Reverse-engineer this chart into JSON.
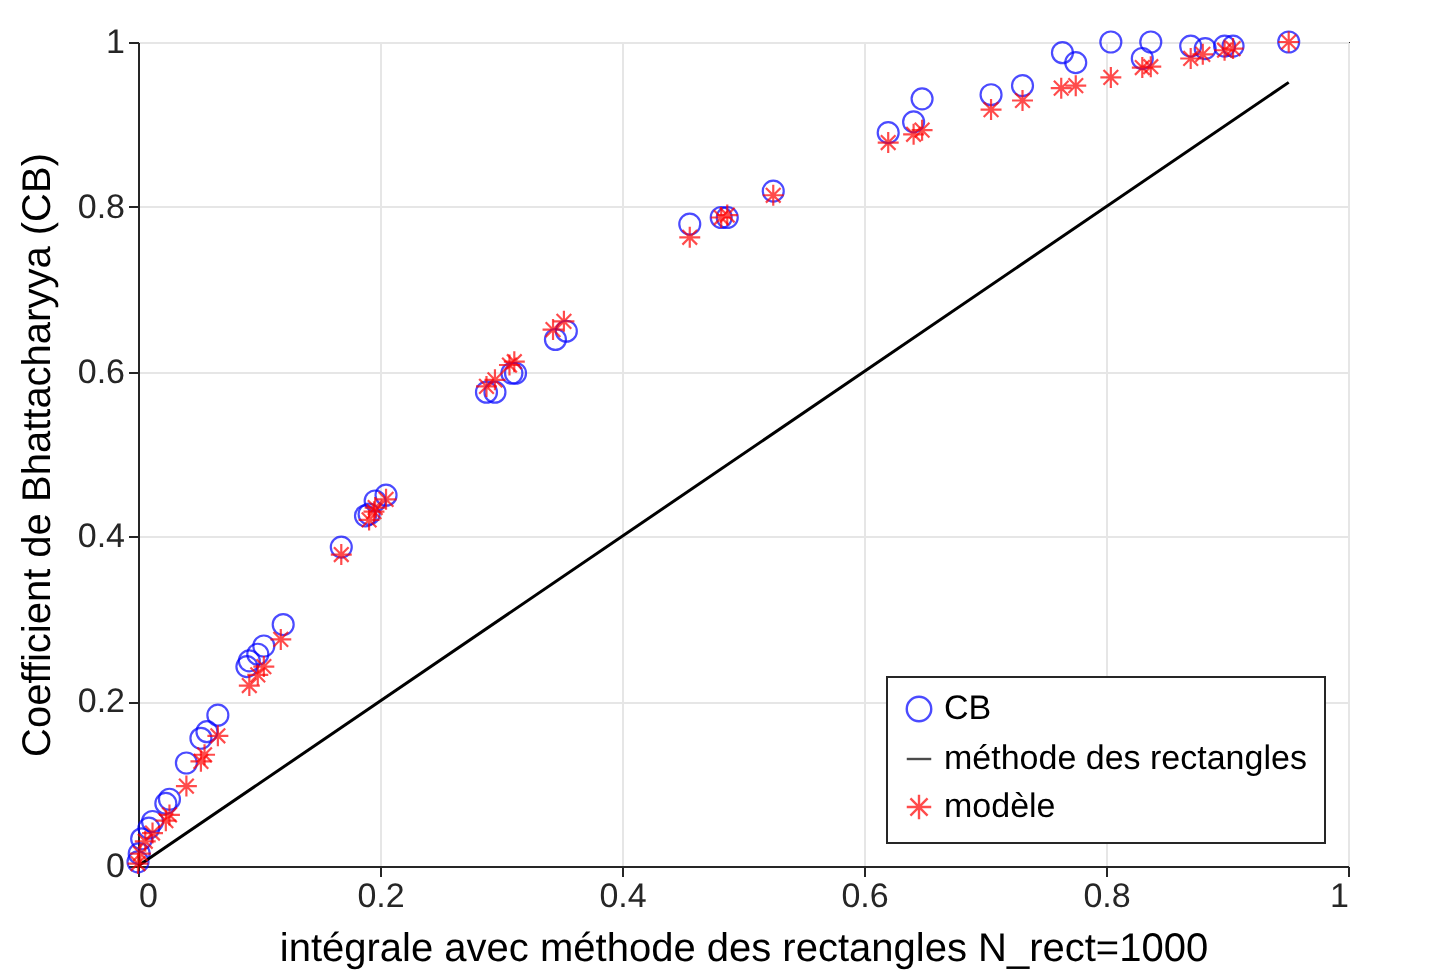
{
  "chart_data": {
    "type": "scatter",
    "xlabel": "intégrale avec méthode des rectangles N_rect=1000",
    "ylabel": "Coefficient de Bhattacharyya (CB)",
    "xlim": [
      0,
      1
    ],
    "ylim": [
      0,
      1
    ],
    "xticks": [
      0,
      0.2,
      0.4,
      0.6,
      0.8,
      1
    ],
    "yticks": [
      {
        "value": 0,
        "label": "0"
      },
      0.2,
      0.4,
      0.6,
      0.8,
      {
        "value": 1,
        "label": "1"
      }
    ],
    "grid": true,
    "legend": "bottom right",
    "series": [
      {
        "name": "CB",
        "color": "#0000ff",
        "marker": "circle",
        "x": [
          0,
          0.001,
          0.003,
          0.009,
          0.012,
          0.023,
          0.026,
          0.04,
          0.052,
          0.057,
          0.066,
          0.09,
          0.092,
          0.099,
          0.104,
          0.12,
          0.168,
          0.188,
          0.191,
          0.196,
          0.205,
          0.288,
          0.295,
          0.309,
          0.312,
          0.345,
          0.354,
          0.456,
          0.482,
          0.487,
          0.525,
          0.62,
          0.641,
          0.648,
          0.705,
          0.731,
          0.764,
          0.775,
          0.804,
          0.83,
          0.837,
          0.87,
          0.882,
          0.898,
          0.905,
          0.951
        ],
        "values": [
          0.005,
          0.015,
          0.033,
          0.046,
          0.054,
          0.076,
          0.081,
          0.125,
          0.155,
          0.163,
          0.183,
          0.242,
          0.249,
          0.257,
          0.267,
          0.293,
          0.387,
          0.425,
          0.427,
          0.443,
          0.45,
          0.575,
          0.575,
          0.598,
          0.598,
          0.639,
          0.649,
          0.779,
          0.787,
          0.787,
          0.819,
          0.89,
          0.903,
          0.931,
          0.936,
          0.947,
          0.987,
          0.975,
          1.0,
          0.98,
          1.0,
          0.995,
          0.992,
          0.995,
          0.995,
          1.0
        ]
      },
      {
        "name": "méthode des rectangles",
        "color": "#000000",
        "type": "line",
        "marker": "none",
        "line_style": "solid",
        "x": [
          0,
          0.951
        ],
        "values": [
          0,
          0.951
        ]
      },
      {
        "name": "modèle",
        "color": "#ff0000",
        "marker": "cross",
        "x": [
          0,
          0.002,
          0.006,
          0.012,
          0.023,
          0.026,
          0.04,
          0.052,
          0.055,
          0.066,
          0.092,
          0.099,
          0.104,
          0.118,
          0.168,
          0.191,
          0.195,
          0.196,
          0.205,
          0.288,
          0.295,
          0.307,
          0.311,
          0.343,
          0.352,
          0.456,
          0.482,
          0.487,
          0.525,
          0.62,
          0.641,
          0.648,
          0.705,
          0.731,
          0.763,
          0.775,
          0.804,
          0.83,
          0.837,
          0.87,
          0.88,
          0.898,
          0.905,
          0.951
        ],
        "values": [
          0.003,
          0.015,
          0.03,
          0.04,
          0.055,
          0.062,
          0.097,
          0.127,
          0.135,
          0.158,
          0.219,
          0.232,
          0.242,
          0.275,
          0.378,
          0.42,
          0.43,
          0.435,
          0.445,
          0.582,
          0.59,
          0.608,
          0.612,
          0.651,
          0.661,
          0.763,
          0.787,
          0.79,
          0.814,
          0.878,
          0.888,
          0.893,
          0.918,
          0.929,
          0.944,
          0.947,
          0.957,
          0.969,
          0.97,
          0.98,
          0.985,
          0.99,
          0.992,
          1.0
        ]
      }
    ]
  }
}
